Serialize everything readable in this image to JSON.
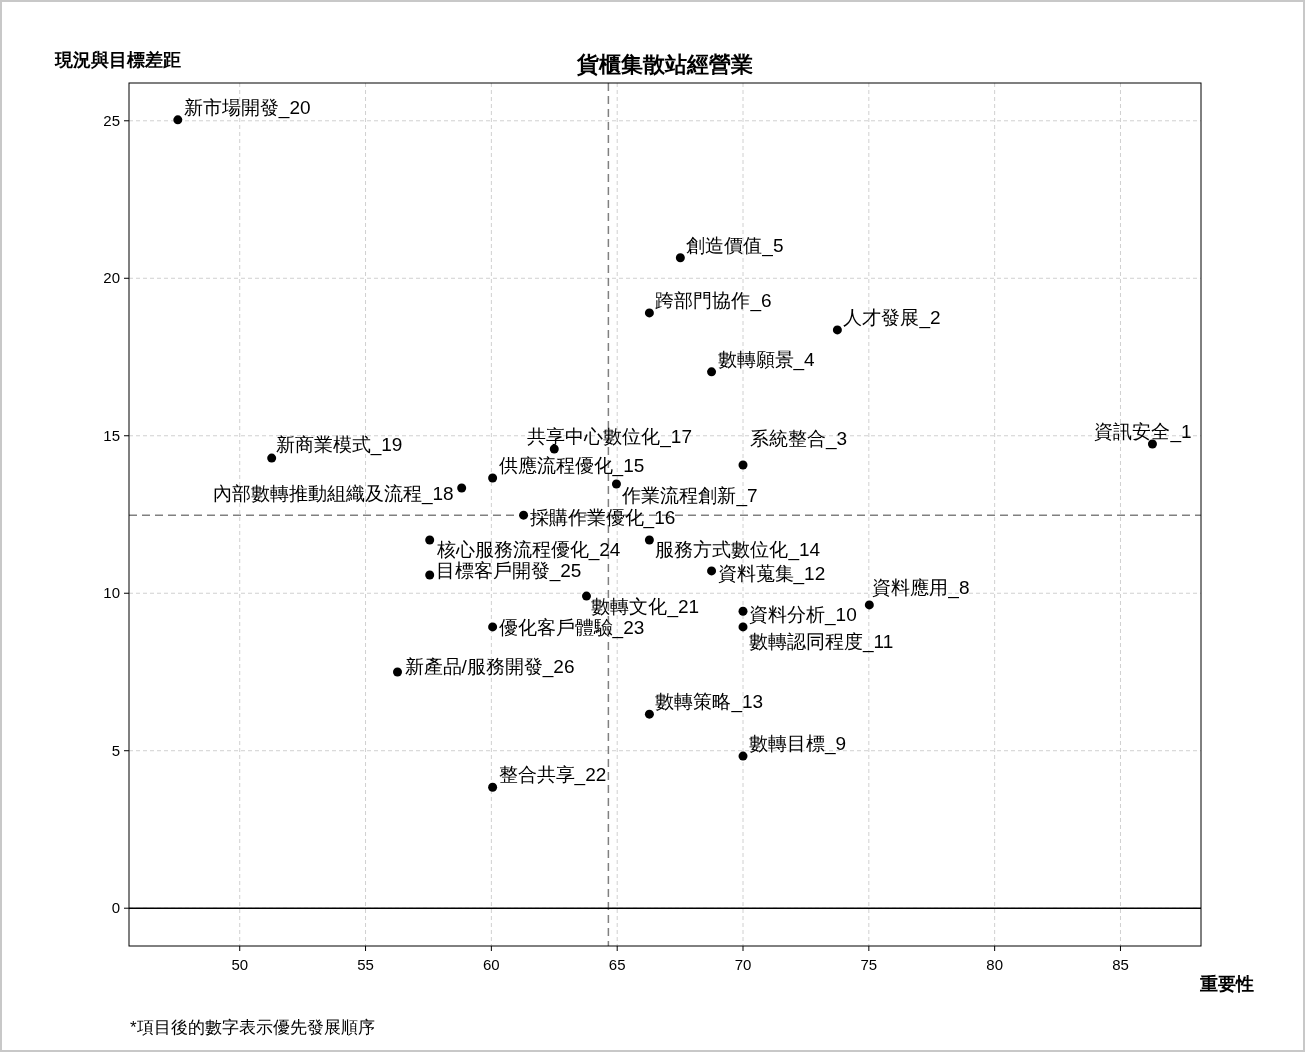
{
  "chart_data": {
    "type": "scatter",
    "title": "貨櫃集散站經營業",
    "xlabel": "重要性",
    "ylabel": "現況與目標差距",
    "xlim": [
      45.6,
      88.2
    ],
    "ylim": [
      -1.2,
      26.2
    ],
    "xticks": [
      50,
      55,
      60,
      65,
      70,
      75,
      80,
      85
    ],
    "yticks": [
      0,
      5,
      10,
      15,
      20,
      25
    ],
    "grid": true,
    "marker": "circle",
    "series": [
      {
        "color": "#000000",
        "x": [
          86.27,
          73.75,
          70.0,
          68.75,
          67.51,
          66.28,
          64.97,
          75.02,
          70.0,
          70.0,
          70.0,
          68.75,
          66.28,
          66.28,
          60.05,
          61.28,
          62.5,
          58.82,
          51.27,
          47.54,
          63.78,
          60.05,
          60.05,
          57.55,
          57.55,
          56.27
        ],
        "values": [
          14.74,
          18.36,
          14.07,
          17.03,
          20.65,
          18.9,
          13.47,
          9.63,
          4.83,
          9.43,
          8.93,
          10.71,
          6.16,
          11.69,
          13.66,
          12.48,
          14.58,
          13.34,
          14.29,
          25.03,
          9.91,
          3.84,
          8.93,
          11.69,
          10.58,
          7.5
        ]
      }
    ],
    "annotations": [
      {
        "text": "資訊安全_1",
        "x": 86.27,
        "y": 14.74
      },
      {
        "text": "人才發展_2",
        "x": 73.75,
        "y": 18.36
      },
      {
        "text": "系統整合_3",
        "x": 70.0,
        "y": 14.07
      },
      {
        "text": "數轉願景_4",
        "x": 68.75,
        "y": 17.03
      },
      {
        "text": "創造價值_5",
        "x": 67.51,
        "y": 20.65
      },
      {
        "text": "跨部門協作_6",
        "x": 66.28,
        "y": 18.9
      },
      {
        "text": "作業流程創新_7",
        "x": 64.97,
        "y": 13.47
      },
      {
        "text": "資料應用_8",
        "x": 75.02,
        "y": 9.63
      },
      {
        "text": "數轉目標_9",
        "x": 70.0,
        "y": 4.83
      },
      {
        "text": "資料分析_10",
        "x": 70.0,
        "y": 9.43
      },
      {
        "text": "數轉認同程度_11",
        "x": 70.0,
        "y": 8.93
      },
      {
        "text": "資料蒐集_12",
        "x": 68.75,
        "y": 10.71
      },
      {
        "text": "數轉策略_13",
        "x": 66.28,
        "y": 6.16
      },
      {
        "text": "服務方式數位化_14",
        "x": 66.28,
        "y": 11.69
      },
      {
        "text": "供應流程優化_15",
        "x": 60.05,
        "y": 13.66
      },
      {
        "text": "採購作業優化_16",
        "x": 61.28,
        "y": 12.48
      },
      {
        "text": "共享中心數位化_17",
        "x": 62.5,
        "y": 14.58
      },
      {
        "text": "內部數轉推動組織及流程_18",
        "x": 58.82,
        "y": 13.34
      },
      {
        "text": "新商業模式_19",
        "x": 51.27,
        "y": 14.29
      },
      {
        "text": "新市場開發_20",
        "x": 47.54,
        "y": 25.03
      },
      {
        "text": "數轉文化_21",
        "x": 63.78,
        "y": 9.91
      },
      {
        "text": "整合共享_22",
        "x": 60.05,
        "y": 3.84
      },
      {
        "text": "優化客戶體驗_23",
        "x": 60.05,
        "y": 8.93
      },
      {
        "text": "核心服務流程優化_24",
        "x": 57.55,
        "y": 11.69
      },
      {
        "text": "目標客戶開發_25",
        "x": 57.55,
        "y": 10.58
      },
      {
        "text": "新產品/服務開發_26",
        "x": 56.27,
        "y": 7.5
      },
      "*項目後的數字表示優先發展順序"
    ],
    "ref_lines": [
      {
        "axis": "x",
        "value": 64.65,
        "line_style": "dashed",
        "color": "#808080"
      },
      {
        "axis": "y",
        "value": 12.48,
        "line_style": "dashed",
        "color": "#808080"
      },
      {
        "axis": "y",
        "value": 0,
        "line_style": "solid",
        "color": "#000000"
      }
    ]
  }
}
